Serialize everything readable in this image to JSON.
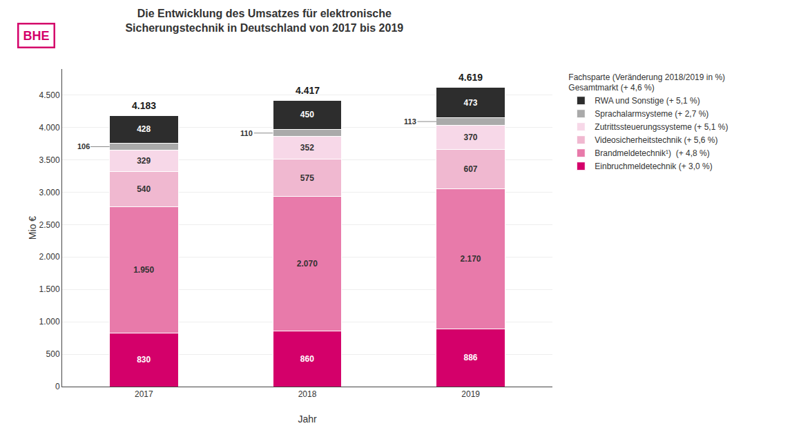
{
  "chart_data": {
    "type": "bar",
    "stacked": true,
    "title": "Die Entwicklung des Umsatzes für elektronische\nSicherungstechnik in Deutschland von 2017 bis 2019",
    "x_label": "Jahr",
    "y_label": "Mio €",
    "categories": [
      "2017",
      "2018",
      "2019"
    ],
    "series": [
      {
        "name": "Einbruchmeldetechnik (+ 3,0 %)",
        "color": "#d4006a",
        "values": [
          830,
          860,
          886
        ],
        "value_labels": [
          "830",
          "860",
          "886"
        ]
      },
      {
        "name": "Brandmeldetechnik¹)  (+ 4,8 %)",
        "color": "#e87aaa",
        "values": [
          1950,
          2070,
          2170
        ],
        "value_labels": [
          "1.950",
          "2.070",
          "2.170"
        ]
      },
      {
        "name": "Videosicherheitstechnik (+ 5,6 %)",
        "color": "#f0b8d0",
        "values": [
          540,
          575,
          607
        ],
        "value_labels": [
          "540",
          "575",
          "607"
        ]
      },
      {
        "name": "Zutrittssteuerungssysteme (+ 5,1 %)",
        "color": "#f7d8e8",
        "values": [
          329,
          352,
          370
        ],
        "value_labels": [
          "329",
          "352",
          "370"
        ]
      },
      {
        "name": "Sprachalarmsysteme (+ 2,7 %)",
        "color": "#aaaaaa",
        "values": [
          106,
          110,
          113
        ],
        "value_labels": [
          "106",
          "110",
          "113"
        ]
      },
      {
        "name": "RWA und Sonstige (+ 5,1 %)",
        "color": "#2d2d2d",
        "values": [
          428,
          450,
          473
        ],
        "value_labels": [
          "428",
          "450",
          "473"
        ]
      }
    ],
    "totals": {
      "values": [
        4183,
        4417,
        4619
      ],
      "value_labels": [
        "4.183",
        "4.417",
        "4.619"
      ]
    },
    "data_labels": true,
    "ylim": [
      0,
      4900
    ],
    "yticks": [
      0,
      500,
      {
        "value": 1000,
        "label": "1.000"
      },
      {
        "value": 1500,
        "label": "1.500"
      },
      {
        "value": 2000,
        "label": "2.000"
      },
      {
        "value": 2500,
        "label": "2.500"
      },
      {
        "value": 3000,
        "label": "3.000"
      },
      {
        "value": 3500,
        "label": "3.500"
      },
      {
        "value": 4000,
        "label": "4.000"
      },
      {
        "value": 4500,
        "label": "4.500"
      }
    ],
    "grid": true,
    "legend": "right",
    "annotations": [
      {
        "text": "BHE"
      },
      {
        "text": "Fachsparte (Veränderung 2018/2019 in %)"
      },
      {
        "text": "Gesamtmarkt (+ 4,6 %)"
      }
    ]
  }
}
